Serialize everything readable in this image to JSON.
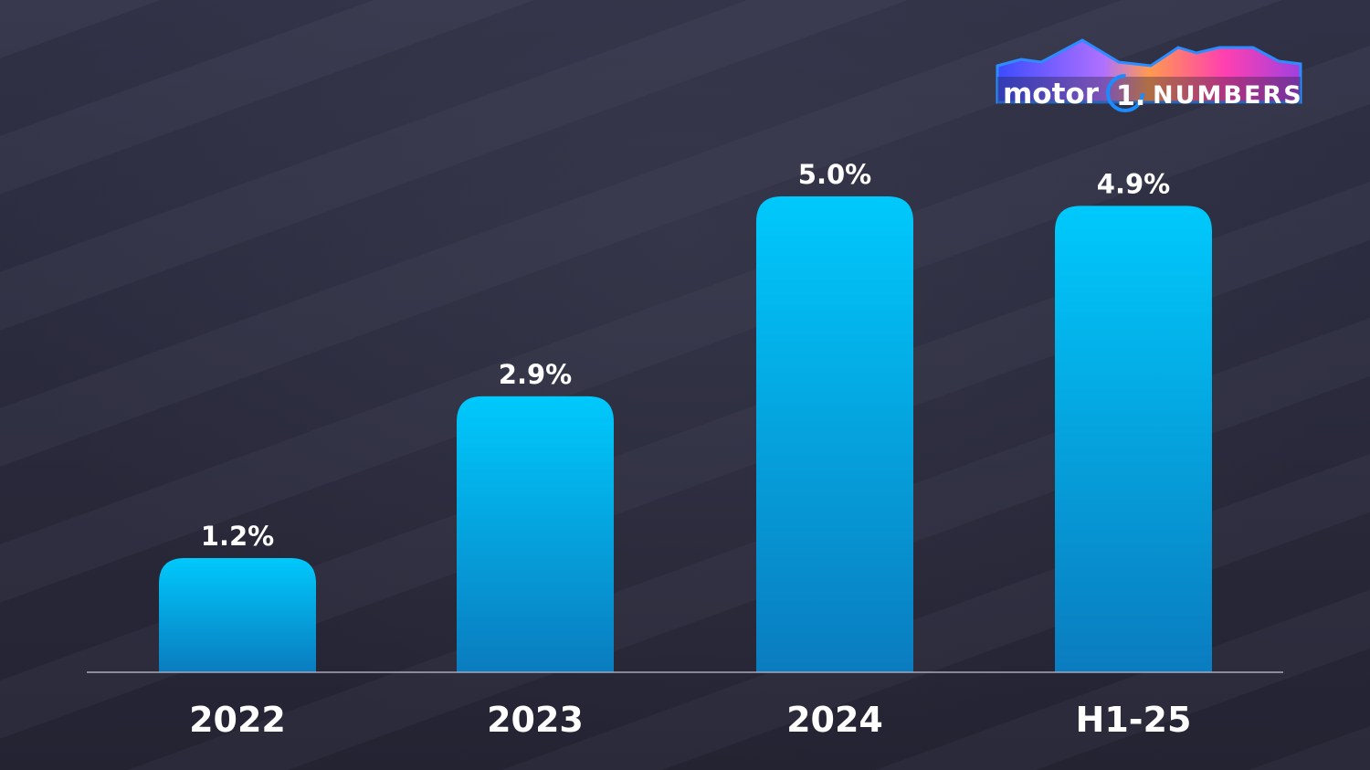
{
  "logo": {
    "text": "motor 1. NUMBERS"
  },
  "chart_data": {
    "type": "bar",
    "categories": [
      "2022",
      "2023",
      "2024",
      "H1-25"
    ],
    "values": [
      1.2,
      2.9,
      5.0,
      4.9
    ],
    "data_labels": [
      "1.2%",
      "2.9%",
      "5.0%",
      "4.9%"
    ],
    "title": "",
    "xlabel": "",
    "ylabel": "",
    "ylim": [
      0,
      5.0
    ],
    "grid": false,
    "bar_color_top": "#00c9fc",
    "bar_color_bottom": "#0a7cbf",
    "background": "#2b2b3b"
  }
}
